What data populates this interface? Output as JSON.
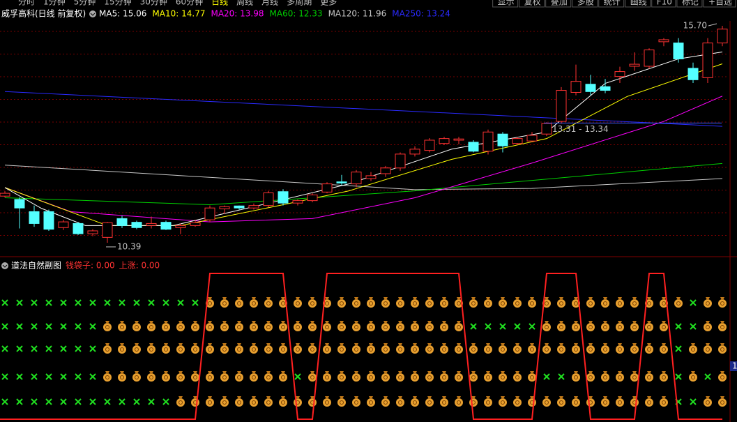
{
  "toolbar": {
    "periods": [
      "分时",
      "1分钟",
      "5分钟",
      "15分钟",
      "30分钟",
      "60分钟",
      "日线",
      "周线",
      "月线",
      "多周期",
      "更多"
    ],
    "buttons": [
      "显示",
      "复权",
      "叠加",
      "多股",
      "统计",
      "画线",
      "F10",
      "标记",
      "+自选"
    ]
  },
  "chart_data": {
    "type": "candlestick",
    "title": "威孚高科(日线 前复权)",
    "ylim": [
      10.15,
      15.82
    ],
    "open": [
      11.53,
      11.45,
      11.15,
      11.15,
      10.76,
      10.86,
      10.61,
      10.52,
      10.98,
      10.89,
      10.81,
      10.89,
      10.76,
      10.81,
      10.95,
      11.22,
      11.29,
      11.24,
      11.3,
      11.64,
      11.36,
      11.42,
      11.63,
      11.88,
      11.83,
      11.96,
      12.08,
      12.22,
      12.56,
      12.65,
      12.82,
      12.9,
      12.85,
      12.63,
      13.05,
      12.82,
      12.88,
      13.05,
      13.36,
      14.07,
      14.27,
      14.21,
      14.46,
      14.71,
      14.71,
      15.31,
      15.28,
      14.66,
      14.43,
      15.28
    ],
    "high": [
      11.65,
      11.5,
      11.3,
      11.2,
      10.95,
      10.9,
      10.72,
      10.9,
      11.05,
      10.93,
      11.03,
      10.93,
      10.86,
      10.95,
      11.3,
      11.3,
      11.3,
      11.35,
      11.66,
      11.7,
      11.45,
      11.6,
      11.87,
      12.05,
      12.17,
      12.12,
      12.27,
      12.6,
      12.75,
      12.95,
      12.98,
      12.98,
      12.9,
      13.16,
      13.1,
      12.98,
      13.1,
      13.34,
      14.2,
      14.75,
      14.5,
      14.4,
      14.7,
      15.05,
      15.15,
      15.4,
      15.4,
      14.8,
      15.4,
      15.7
    ],
    "low": [
      11.5,
      10.74,
      10.78,
      10.68,
      10.7,
      10.58,
      10.55,
      10.39,
      10.75,
      10.72,
      10.74,
      10.7,
      10.6,
      10.78,
      10.9,
      11.1,
      11.2,
      11.2,
      11.25,
      11.3,
      11.3,
      11.38,
      11.6,
      11.8,
      11.75,
      11.9,
      12.0,
      12.15,
      12.5,
      12.6,
      12.78,
      12.8,
      12.6,
      12.55,
      12.6,
      12.78,
      12.85,
      13.0,
      13.3,
      14.0,
      14.0,
      14.05,
      14.3,
      14.6,
      14.65,
      15.2,
      14.8,
      14.3,
      14.3,
      15.2
    ],
    "close": [
      11.6,
      11.24,
      10.86,
      10.72,
      10.9,
      10.61,
      10.68,
      10.88,
      10.81,
      10.76,
      10.86,
      10.72,
      10.81,
      10.88,
      11.24,
      11.27,
      11.24,
      11.3,
      11.61,
      11.36,
      11.42,
      11.56,
      11.83,
      11.85,
      12.12,
      12.03,
      12.22,
      12.56,
      12.68,
      12.9,
      12.94,
      12.93,
      12.63,
      13.1,
      12.76,
      12.94,
      13.02,
      13.31,
      14.12,
      14.34,
      14.09,
      14.12,
      14.58,
      14.76,
      15.11,
      15.36,
      14.89,
      14.38,
      15.28,
      15.62
    ],
    "up_color": "#ff3232",
    "down_color": "#54ffff",
    "series": [
      {
        "name": "MA5",
        "legend_label": "MA5: 15.06",
        "color": "#ffffff",
        "x": [
          0,
          2.5,
          5.5,
          11.5,
          18.5,
          23.5,
          30.5,
          37,
          41,
          46,
          49
        ],
        "values": [
          11.74,
          11.23,
          10.81,
          10.81,
          11.4,
          11.83,
          12.68,
          13.1,
          14.29,
          14.89,
          15.06
        ]
      },
      {
        "name": "MA10",
        "legend_label": "MA10: 14.77",
        "color": "#ffff00",
        "x": [
          0,
          7,
          12,
          19,
          23.5,
          30.5,
          37,
          42.5,
          49
        ],
        "values": [
          11.74,
          10.81,
          10.81,
          11.32,
          11.66,
          12.43,
          12.94,
          13.97,
          14.77
        ]
      },
      {
        "name": "MA20",
        "legend_label": "MA20: 13.98",
        "color": "#ff00ff",
        "x": [
          0,
          4.5,
          14,
          21,
          28,
          36,
          45,
          49
        ],
        "values": [
          11.74,
          11.15,
          10.9,
          10.98,
          11.49,
          12.34,
          13.36,
          13.98
        ]
      },
      {
        "name": "MA60",
        "legend_label": "MA60: 12.33",
        "color": "#00d000",
        "x": [
          0,
          14,
          28,
          49
        ],
        "values": [
          11.49,
          11.32,
          11.66,
          12.33
        ]
      },
      {
        "name": "MA120",
        "legend_label": "MA120: 11.96",
        "color": "#c8c8c8",
        "x": [
          0,
          28,
          36,
          49
        ],
        "values": [
          12.29,
          11.69,
          11.72,
          11.96
        ]
      },
      {
        "name": "MA250",
        "legend_label": "MA250: 13.24",
        "color": "#2a2aff",
        "x": [
          0,
          49
        ],
        "values": [
          14.09,
          13.24
        ]
      }
    ],
    "annotations": [
      {
        "text": "15.70",
        "x": 49,
        "value": 15.7
      },
      {
        "text": "10.39",
        "x": 7,
        "value": 10.39
      },
      {
        "text": "13.31 - 13.34",
        "x": 37,
        "value": 13.32
      }
    ],
    "sub_panel": {
      "title": "道法自然副图",
      "indicators": [
        "钱袋子: 0.00",
        "上涨: 0.00"
      ],
      "right_label": "1",
      "signal": [
        0,
        0,
        0,
        0,
        0,
        0,
        0,
        0,
        0,
        0,
        0,
        0,
        0,
        0,
        1,
        1,
        1,
        1,
        1,
        1,
        0,
        0,
        1,
        1,
        1,
        1,
        1,
        1,
        1,
        1,
        1,
        1,
        0,
        0,
        0,
        0,
        0,
        1,
        1,
        1,
        0,
        0,
        0,
        0,
        1,
        1,
        0,
        0,
        0,
        0
      ],
      "rows": [
        [
          0,
          0,
          0,
          0,
          0,
          0,
          0,
          0,
          0,
          0,
          0,
          0,
          0,
          0,
          1,
          1,
          1,
          1,
          1,
          1,
          1,
          1,
          1,
          1,
          1,
          1,
          1,
          1,
          1,
          1,
          1,
          1,
          1,
          1,
          1,
          1,
          1,
          1,
          1,
          1,
          1,
          1,
          1,
          1,
          1,
          1,
          1,
          0,
          1,
          1
        ],
        [
          0,
          0,
          0,
          0,
          0,
          0,
          0,
          1,
          1,
          1,
          1,
          1,
          1,
          1,
          1,
          1,
          1,
          1,
          1,
          1,
          1,
          1,
          1,
          1,
          1,
          1,
          1,
          1,
          1,
          1,
          1,
          1,
          0,
          0,
          0,
          0,
          0,
          1,
          1,
          1,
          1,
          1,
          1,
          1,
          1,
          1,
          0,
          0,
          1,
          1
        ],
        [
          0,
          0,
          0,
          0,
          0,
          0,
          0,
          1,
          1,
          1,
          1,
          1,
          1,
          1,
          1,
          1,
          1,
          1,
          1,
          1,
          1,
          1,
          1,
          1,
          1,
          1,
          1,
          1,
          1,
          1,
          1,
          1,
          1,
          1,
          1,
          1,
          1,
          1,
          1,
          1,
          1,
          1,
          1,
          1,
          1,
          1,
          0,
          1,
          1,
          1
        ],
        [
          0,
          0,
          0,
          0,
          0,
          0,
          0,
          1,
          1,
          1,
          1,
          1,
          1,
          1,
          1,
          1,
          1,
          1,
          1,
          1,
          0,
          1,
          1,
          1,
          1,
          1,
          1,
          1,
          1,
          1,
          1,
          1,
          1,
          1,
          1,
          1,
          1,
          0,
          0,
          1,
          1,
          1,
          1,
          1,
          1,
          1,
          0,
          1,
          0,
          1
        ],
        [
          0,
          0,
          0,
          0,
          0,
          0,
          0,
          0,
          0,
          0,
          0,
          0,
          1,
          1,
          1,
          1,
          1,
          1,
          1,
          1,
          1,
          1,
          1,
          1,
          1,
          1,
          1,
          1,
          1,
          1,
          1,
          1,
          1,
          1,
          1,
          1,
          1,
          1,
          1,
          1,
          1,
          1,
          1,
          1,
          1,
          1,
          0,
          0,
          1,
          1
        ]
      ]
    }
  }
}
